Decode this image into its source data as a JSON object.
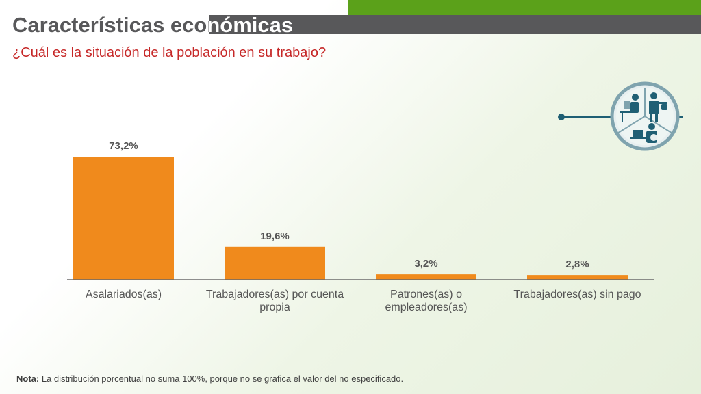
{
  "header": {
    "title": "Características económicas",
    "subtitle": "¿Cuál es la situación de la población en su trabajo?"
  },
  "colors": {
    "bar": "#f08a1c",
    "accent_green": "#5ba11a",
    "title_bar": "#58585a",
    "subtitle": "#c62828",
    "icon_teal": "#1f5f74"
  },
  "icon": {
    "name": "workers-icon"
  },
  "chart_data": {
    "type": "bar",
    "categories": [
      "Asalariados(as)",
      "Trabajadores(as) por cuenta propia",
      "Patrones(as) o empleadores(as)",
      "Trabajadores(as) sin pago"
    ],
    "values": [
      73.2,
      19.6,
      3.2,
      2.8
    ],
    "value_labels": [
      "73,2%",
      "19,6%",
      "3,2%",
      "2,8%"
    ],
    "ylim": [
      0,
      73.2
    ],
    "grid": false
  },
  "note": {
    "label": "Nota:",
    "text": "La distribución porcentual no suma 100%, porque no se grafica el valor del no especificado."
  }
}
